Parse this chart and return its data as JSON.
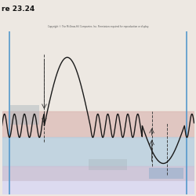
{
  "title": "re 23.24",
  "copyright": "Copyright © The McGraw-Hill Companies, Inc. Permission required for reproduction or display.",
  "bg_top": "#ede8e2",
  "pink_color": "#dbb8b4",
  "blue_color": "#b8cfe0",
  "lavender_color": "#ccc4d8",
  "gray_box_color": "#a8b4bc",
  "blue_line_color": "#5599cc",
  "wave_color": "#1a1a1a",
  "xlim": [
    0,
    10
  ],
  "ylim": [
    -1.05,
    1.45
  ]
}
